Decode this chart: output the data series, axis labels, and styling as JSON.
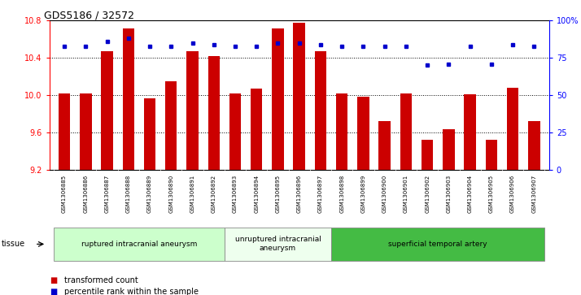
{
  "title": "GDS5186 / 32572",
  "samples": [
    "GSM1306885",
    "GSM1306886",
    "GSM1306887",
    "GSM1306888",
    "GSM1306889",
    "GSM1306890",
    "GSM1306891",
    "GSM1306892",
    "GSM1306893",
    "GSM1306894",
    "GSM1306895",
    "GSM1306896",
    "GSM1306897",
    "GSM1306898",
    "GSM1306899",
    "GSM1306900",
    "GSM1306901",
    "GSM1306902",
    "GSM1306903",
    "GSM1306904",
    "GSM1306905",
    "GSM1306906",
    "GSM1306907"
  ],
  "bar_values": [
    10.02,
    10.02,
    10.47,
    10.72,
    9.97,
    10.15,
    10.47,
    10.42,
    10.02,
    10.07,
    10.72,
    10.78,
    10.47,
    10.02,
    9.98,
    9.72,
    10.02,
    9.52,
    9.63,
    10.01,
    9.52,
    10.08,
    9.72
  ],
  "percentile_values": [
    83,
    83,
    86,
    88,
    83,
    83,
    85,
    84,
    83,
    83,
    85,
    85,
    84,
    83,
    83,
    83,
    83,
    70,
    71,
    83,
    71,
    84,
    83
  ],
  "bar_color": "#cc0000",
  "dot_color": "#0000cc",
  "ylim_left": [
    9.2,
    10.8
  ],
  "ylim_right": [
    0,
    100
  ],
  "yticks_left": [
    9.2,
    9.6,
    10.0,
    10.4,
    10.8
  ],
  "yticks_right": [
    0,
    25,
    50,
    75,
    100
  ],
  "grid_values": [
    9.6,
    10.0,
    10.4
  ],
  "groups": [
    {
      "label": "ruptured intracranial aneurysm",
      "start": 0,
      "end": 8,
      "color": "#ccffcc"
    },
    {
      "label": "unruptured intracranial\naneurysm",
      "start": 8,
      "end": 13,
      "color": "#eeffee"
    },
    {
      "label": "superficial temporal artery",
      "start": 13,
      "end": 23,
      "color": "#44bb44"
    }
  ],
  "legend_items": [
    {
      "label": "transformed count",
      "color": "#cc0000"
    },
    {
      "label": "percentile rank within the sample",
      "color": "#0000cc"
    }
  ],
  "tissue_label": "tissue",
  "xtick_bg": "#d8d8d8",
  "plot_bg": "#ffffff"
}
